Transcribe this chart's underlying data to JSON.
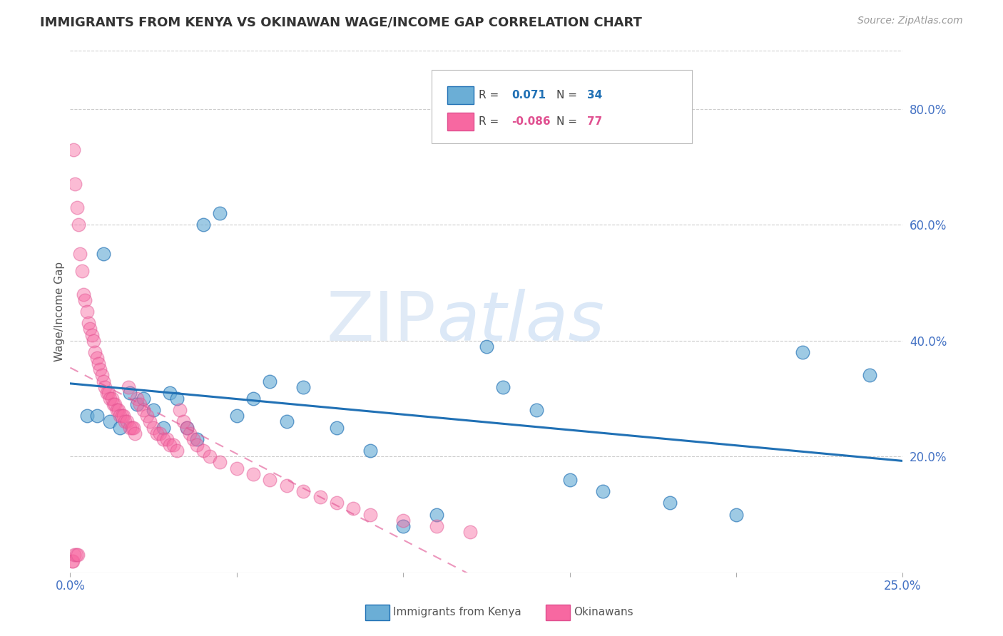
{
  "title": "IMMIGRANTS FROM KENYA VS OKINAWAN WAGE/INCOME GAP CORRELATION CHART",
  "source": "Source: ZipAtlas.com",
  "ylabel": "Wage/Income Gap",
  "series1_label": "Immigrants from Kenya",
  "series2_label": "Okinawans",
  "series1_color": "#6baed6",
  "series2_color": "#f768a1",
  "trendline1_color": "#2171b5",
  "trendline2_color": "#e05090",
  "blue_points_x": [
    0.5,
    0.8,
    1.2,
    1.5,
    1.8,
    2.0,
    2.2,
    2.5,
    2.8,
    3.0,
    3.2,
    3.5,
    3.8,
    4.0,
    4.5,
    5.0,
    5.5,
    6.0,
    6.5,
    7.0,
    8.0,
    9.0,
    10.0,
    11.0,
    12.5,
    13.0,
    14.0,
    15.0,
    16.0,
    18.0,
    20.0,
    22.0,
    24.0,
    1.0
  ],
  "blue_points_y": [
    27,
    27,
    26,
    25,
    31,
    29,
    30,
    28,
    25,
    31,
    30,
    25,
    23,
    60,
    62,
    27,
    30,
    33,
    26,
    32,
    25,
    21,
    8,
    10,
    39,
    32,
    28,
    16,
    14,
    12,
    10,
    38,
    34,
    55
  ],
  "pink_points_x": [
    0.05,
    0.08,
    0.1,
    0.12,
    0.15,
    0.18,
    0.2,
    0.22,
    0.25,
    0.3,
    0.35,
    0.4,
    0.45,
    0.5,
    0.55,
    0.6,
    0.65,
    0.7,
    0.75,
    0.8,
    0.85,
    0.9,
    0.95,
    1.0,
    1.05,
    1.1,
    1.15,
    1.2,
    1.25,
    1.3,
    1.35,
    1.4,
    1.45,
    1.5,
    1.55,
    1.6,
    1.65,
    1.7,
    1.75,
    1.8,
    1.85,
    1.9,
    1.95,
    2.0,
    2.1,
    2.2,
    2.3,
    2.4,
    2.5,
    2.6,
    2.7,
    2.8,
    2.9,
    3.0,
    3.1,
    3.2,
    3.3,
    3.4,
    3.5,
    3.6,
    3.7,
    3.8,
    4.0,
    4.2,
    4.5,
    5.0,
    5.5,
    6.0,
    6.5,
    7.0,
    7.5,
    8.0,
    8.5,
    9.0,
    10.0,
    11.0,
    12.0
  ],
  "pink_points_y": [
    2,
    2,
    73,
    3,
    67,
    3,
    63,
    3,
    60,
    55,
    52,
    48,
    47,
    45,
    43,
    42,
    41,
    40,
    38,
    37,
    36,
    35,
    34,
    33,
    32,
    31,
    31,
    30,
    30,
    29,
    29,
    28,
    28,
    27,
    27,
    27,
    26,
    26,
    32,
    25,
    25,
    25,
    24,
    30,
    29,
    28,
    27,
    26,
    25,
    24,
    24,
    23,
    23,
    22,
    22,
    21,
    28,
    26,
    25,
    24,
    23,
    22,
    21,
    20,
    19,
    18,
    17,
    16,
    15,
    14,
    13,
    12,
    11,
    10,
    9,
    8,
    7
  ],
  "xlim": [
    0,
    25
  ],
  "ylim": [
    0,
    90
  ],
  "background_color": "#ffffff",
  "grid_color": "#cccccc",
  "axis_label_color": "#4472c4"
}
